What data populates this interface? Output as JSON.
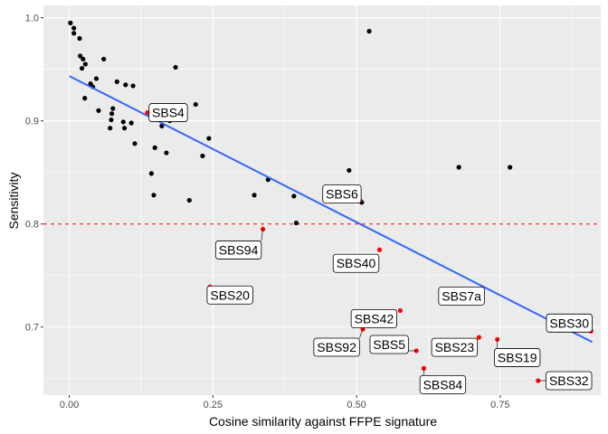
{
  "chart_data": {
    "type": "scatter",
    "title": "",
    "xlabel": "Cosine similarity against FFPE signature",
    "ylabel": "Sensitivity",
    "xlim": [
      -0.045,
      0.925
    ],
    "ylim": [
      0.634,
      1.012
    ],
    "x_ticks": [
      0.0,
      0.25,
      0.5,
      0.75
    ],
    "x_tick_labels": [
      "0.00",
      "0.25",
      "0.50",
      "0.75"
    ],
    "y_ticks": [
      0.7,
      0.8,
      0.9,
      1.0
    ],
    "y_tick_labels": [
      "0.7",
      "0.8",
      "0.9",
      "1.0"
    ],
    "grid": true,
    "background": "#EBEBEB",
    "legend": "none",
    "colors": {
      "black_points": "#000000",
      "red_points": "#FF0000",
      "trend_line": "#3366FF",
      "reference_line": "#FF0000"
    },
    "reference_line": {
      "y": 0.8,
      "style": "dashed"
    },
    "trend_line": {
      "method": "linear",
      "x": [
        0.0,
        0.91
      ],
      "y": [
        0.9435,
        0.6855
      ]
    },
    "black_points": [
      [
        0.002,
        0.995
      ],
      [
        0.008,
        0.99
      ],
      [
        0.008,
        0.985
      ],
      [
        0.018,
        0.98
      ],
      [
        0.019,
        0.963
      ],
      [
        0.024,
        0.96
      ],
      [
        0.022,
        0.951
      ],
      [
        0.028,
        0.955
      ],
      [
        0.027,
        0.922
      ],
      [
        0.037,
        0.936
      ],
      [
        0.041,
        0.933
      ],
      [
        0.047,
        0.941
      ],
      [
        0.051,
        0.91
      ],
      [
        0.06,
        0.96
      ],
      [
        0.074,
        0.907
      ],
      [
        0.073,
        0.901
      ],
      [
        0.076,
        0.912
      ],
      [
        0.071,
        0.893
      ],
      [
        0.083,
        0.938
      ],
      [
        0.094,
        0.899
      ],
      [
        0.096,
        0.893
      ],
      [
        0.098,
        0.935
      ],
      [
        0.108,
        0.898
      ],
      [
        0.114,
        0.878
      ],
      [
        0.111,
        0.934
      ],
      [
        0.143,
        0.849
      ],
      [
        0.147,
        0.828
      ],
      [
        0.149,
        0.874
      ],
      [
        0.161,
        0.895
      ],
      [
        0.169,
        0.869
      ],
      [
        0.175,
        0.9
      ],
      [
        0.185,
        0.952
      ],
      [
        0.209,
        0.823
      ],
      [
        0.22,
        0.916
      ],
      [
        0.232,
        0.866
      ],
      [
        0.243,
        0.883
      ],
      [
        0.322,
        0.828
      ],
      [
        0.346,
        0.843
      ],
      [
        0.391,
        0.827
      ],
      [
        0.395,
        0.801
      ],
      [
        0.487,
        0.852
      ],
      [
        0.509,
        0.821
      ],
      [
        0.522,
        0.987
      ],
      [
        0.678,
        0.855
      ],
      [
        0.767,
        0.855
      ]
    ],
    "red_points": [
      {
        "label": "SBS4",
        "x": 0.136,
        "y": 0.908
      },
      {
        "label": "SBS94",
        "x": 0.337,
        "y": 0.795
      },
      {
        "label": "SBS20",
        "x": 0.245,
        "y": 0.739
      },
      {
        "label": "SBS6",
        "x": 0.506,
        "y": 0.823
      },
      {
        "label": "SBS40",
        "x": 0.54,
        "y": 0.775
      },
      {
        "label": "SBS42",
        "x": 0.576,
        "y": 0.716
      },
      {
        "label": "SBS92",
        "x": 0.511,
        "y": 0.698
      },
      {
        "label": "SBS5",
        "x": 0.604,
        "y": 0.677
      },
      {
        "label": "SBS84",
        "x": 0.617,
        "y": 0.66
      },
      {
        "label": "SBS7a",
        "x": 0.648,
        "y": 0.724
      },
      {
        "label": "SBS23",
        "x": 0.713,
        "y": 0.69
      },
      {
        "label": "SBS19",
        "x": 0.745,
        "y": 0.688
      },
      {
        "label": "SBS32",
        "x": 0.816,
        "y": 0.648
      },
      {
        "label": "SBS30",
        "x": 0.908,
        "y": 0.696
      }
    ]
  }
}
